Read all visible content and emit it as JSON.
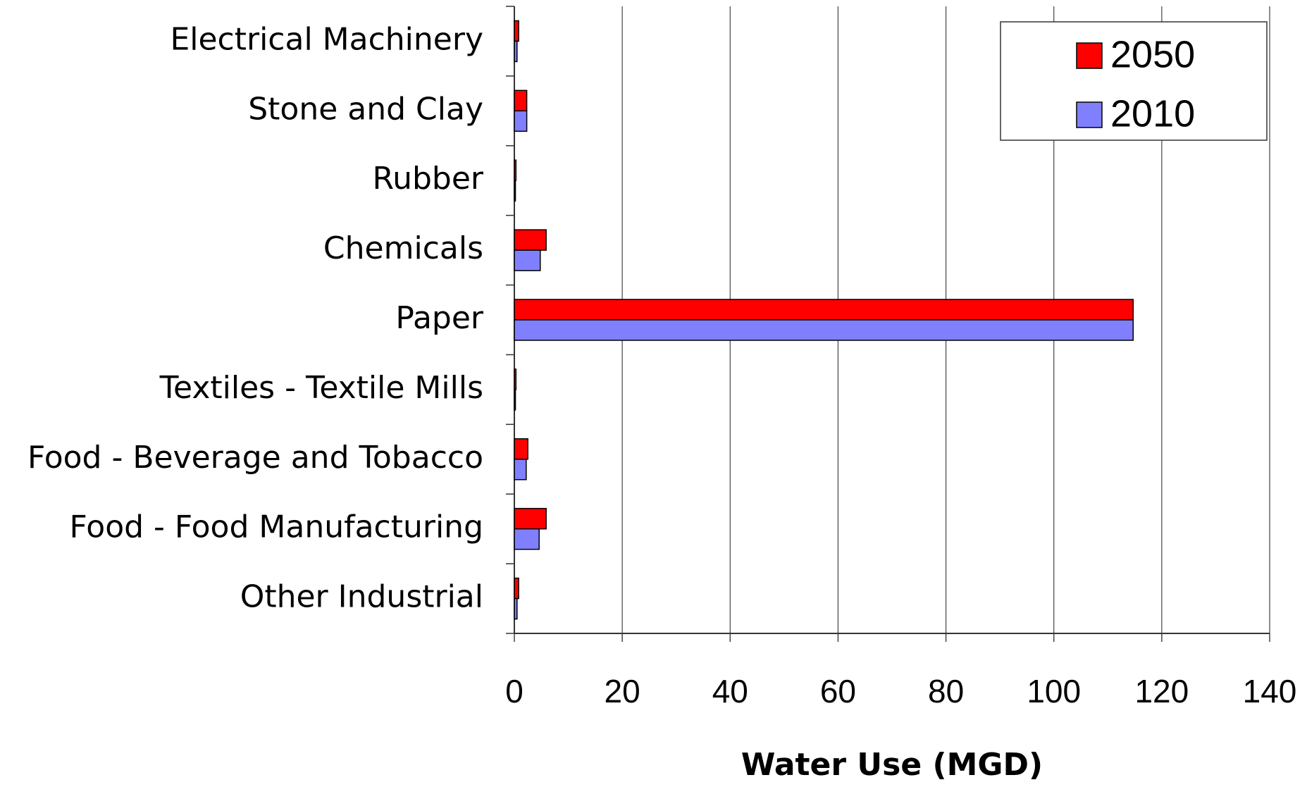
{
  "chart_data": {
    "type": "hbar",
    "categories": [
      "Electrical Machinery",
      "Stone and Clay",
      "Rubber",
      "Chemicals",
      "Paper",
      "Textiles - Textile Mills",
      "Food - Beverage and Tobacco",
      "Food - Food Manufacturing",
      "Other Industrial"
    ],
    "series": [
      {
        "name": "2050",
        "color": "#ff0000",
        "values": [
          0.8,
          2.3,
          0.3,
          5.9,
          114.7,
          0.3,
          2.5,
          5.9,
          0.8
        ]
      },
      {
        "name": "2010",
        "color": "#8080ff",
        "values": [
          0.5,
          2.3,
          0.2,
          4.8,
          114.7,
          0.2,
          2.2,
          4.6,
          0.5
        ]
      }
    ],
    "xlabel": "Water Use (MGD)",
    "xlim": [
      0,
      140
    ],
    "xticks": [
      0,
      20,
      40,
      60,
      80,
      100,
      120,
      140
    ],
    "grid": true,
    "legend": "upper right"
  }
}
